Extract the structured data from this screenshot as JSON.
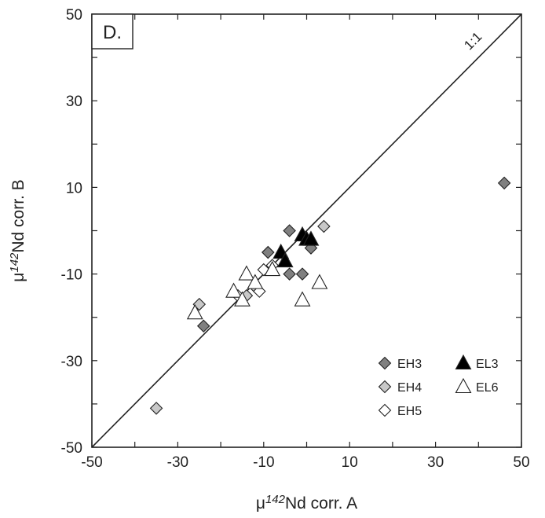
{
  "chart_data": {
    "type": "scatter",
    "panel_label": "D.",
    "xlabel": {
      "mu": "μ",
      "sup": "142",
      "rest": "Nd corr. A"
    },
    "ylabel": {
      "mu": "μ",
      "sup": "142",
      "rest": "Nd corr. B"
    },
    "xlim": [
      -50,
      50
    ],
    "ylim": [
      -50,
      50
    ],
    "x_tick_labels": [
      "-50",
      "-30",
      "-10",
      "10",
      "30",
      "50"
    ],
    "y_tick_labels": [
      "-50",
      "-30",
      "-10",
      "10",
      "30",
      "50"
    ],
    "reference_line": {
      "label": "1:1",
      "from": [
        -50,
        -50
      ],
      "to": [
        50,
        50
      ]
    },
    "legend_position": "bottom-right",
    "series": [
      {
        "name": "EH3",
        "marker": "diamond",
        "fill": "#808080",
        "points": [
          [
            -24,
            -22
          ],
          [
            -4,
            0
          ],
          [
            -4,
            -10
          ],
          [
            -1,
            -10
          ],
          [
            -9,
            -5
          ],
          [
            46,
            11
          ],
          [
            1,
            -4
          ]
        ]
      },
      {
        "name": "EH4",
        "marker": "diamond",
        "fill": "#c8c8c8",
        "points": [
          [
            -35,
            -41
          ],
          [
            -25,
            -17
          ],
          [
            -14,
            -15
          ],
          [
            -12,
            -13
          ],
          [
            4,
            1
          ]
        ]
      },
      {
        "name": "EH5",
        "marker": "diamond",
        "fill": "#ffffff",
        "points": [
          [
            -16,
            -15
          ],
          [
            -11,
            -14
          ],
          [
            -10,
            -9
          ],
          [
            -8,
            -8
          ]
        ]
      },
      {
        "name": "EL3",
        "marker": "triangle",
        "fill": "#000000",
        "points": [
          [
            -6,
            -5
          ],
          [
            -5,
            -7
          ],
          [
            -1,
            -1
          ],
          [
            0,
            -2
          ],
          [
            1,
            -2
          ]
        ]
      },
      {
        "name": "EL6",
        "marker": "triangle",
        "fill": "#ffffff",
        "points": [
          [
            -26,
            -19
          ],
          [
            -17,
            -14
          ],
          [
            -15,
            -16
          ],
          [
            -14,
            -10
          ],
          [
            -12,
            -12
          ],
          [
            -8,
            -9
          ],
          [
            -1,
            -16
          ],
          [
            3,
            -12
          ]
        ]
      }
    ]
  }
}
